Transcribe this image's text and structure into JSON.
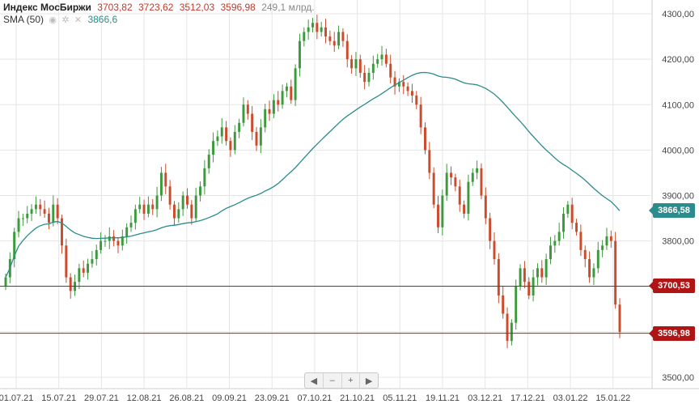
{
  "legend": {
    "title": "Индекс МосБиржи",
    "open": "3703,82",
    "high": "3723,62",
    "low": "3512,03",
    "close": "3596,98",
    "volume": "249,1 млрд.",
    "sma_label": "SMA (50)",
    "sma_value": "3866,6"
  },
  "nav": {
    "prev": "◀",
    "minus": "–",
    "plus": "+",
    "next": "▶"
  },
  "tags": {
    "sma": "3866,58",
    "line1": "3700,53",
    "line2": "3596,98"
  },
  "colors": {
    "up": "#3c9a3c",
    "down": "#cc4b2b",
    "sma": "#2a8c8c",
    "hline": "#cc1111",
    "grid": "#e5e5e5"
  },
  "chart_data": {
    "type": "candlestick",
    "y_ticks": [
      "3500,00",
      "3600,00",
      "3700,00",
      "3800,00",
      "3900,00",
      "4000,00",
      "4100,00",
      "4200,00",
      "4300,00"
    ],
    "ylim": [
      3490,
      4305
    ],
    "x_ticks": [
      "01.07.21",
      "15.07.21",
      "29.07.21",
      "12.08.21",
      "26.08.21",
      "09.09.21",
      "23.09.21",
      "07.10.21",
      "21.10.21",
      "05.11.21",
      "19.11.21",
      "03.12.21",
      "17.12.21",
      "03.01.22",
      "15.01.22"
    ],
    "hlines": [
      3700.53,
      3596.98
    ],
    "closes": [
      3720,
      3760,
      3820,
      3850,
      3850,
      3860,
      3870,
      3880,
      3870,
      3860,
      3840,
      3880,
      3850,
      3790,
      3720,
      3690,
      3710,
      3740,
      3730,
      3750,
      3760,
      3780,
      3800,
      3800,
      3810,
      3800,
      3790,
      3810,
      3830,
      3840,
      3870,
      3880,
      3860,
      3880,
      3870,
      3900,
      3950,
      3920,
      3880,
      3850,
      3870,
      3900,
      3880,
      3850,
      3900,
      3920,
      3960,
      3990,
      4020,
      4030,
      4050,
      4020,
      4000,
      4040,
      4060,
      4100,
      4080,
      4040,
      4010,
      4050,
      4090,
      4080,
      4110,
      4100,
      4130,
      4140,
      4110,
      4180,
      4240,
      4260,
      4270,
      4280,
      4260,
      4270,
      4250,
      4240,
      4230,
      4260,
      4240,
      4200,
      4180,
      4200,
      4170,
      4150,
      4170,
      4190,
      4200,
      4210,
      4190,
      4160,
      4140,
      4150,
      4140,
      4130,
      4120,
      4100,
      4050,
      4000,
      3950,
      3880,
      3830,
      3900,
      3950,
      3940,
      3920,
      3880,
      3860,
      3930,
      3950,
      3960,
      3900,
      3850,
      3800,
      3760,
      3680,
      3640,
      3580,
      3620,
      3700,
      3740,
      3710,
      3680,
      3720,
      3740,
      3720,
      3760,
      3790,
      3800,
      3820,
      3860,
      3880,
      3840,
      3820,
      3780,
      3760,
      3720,
      3740,
      3780,
      3790,
      3810,
      3800,
      3660,
      3600
    ]
  }
}
